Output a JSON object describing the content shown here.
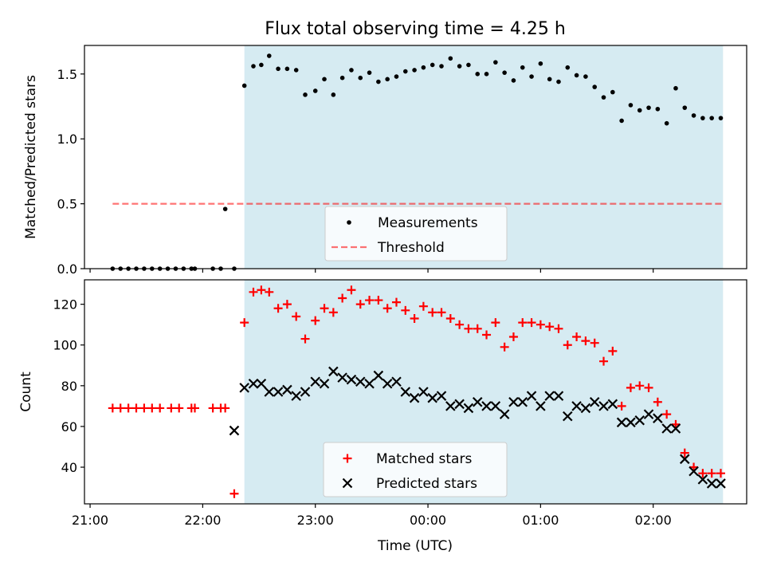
{
  "title": "Flux total observing time = 4.25 h",
  "colors": {
    "shade": "#add8e6",
    "measurement": "#000000",
    "threshold": "#ff0000",
    "matched": "#ff0000",
    "predicted": "#000000"
  },
  "chart_data": [
    {
      "type": "scatter",
      "ylabel": "Matched/Predicted stars",
      "ylim": [
        0,
        1.72
      ],
      "yticks": [
        0.0,
        0.5,
        1.0,
        1.5
      ],
      "ytick_labels": [
        "0.0",
        "0.5",
        "1.0",
        "1.5"
      ],
      "xlim": [
        -0.05,
        5.83
      ],
      "shaded_span": [
        1.37,
        5.62
      ],
      "legend": [
        "Measurements",
        "Threshold"
      ],
      "legend_position": "lower-center",
      "threshold": {
        "name": "Threshold",
        "value": 0.5,
        "x_range": [
          0.2,
          5.62
        ]
      },
      "series": [
        {
          "name": "Measurements",
          "marker": "dot",
          "x": [
            0.2,
            0.27,
            0.34,
            0.41,
            0.48,
            0.55,
            0.62,
            0.69,
            0.76,
            0.83,
            0.9,
            0.93,
            1.09,
            1.16,
            1.2,
            1.28,
            1.37,
            1.45,
            1.52,
            1.59,
            1.67,
            1.75,
            1.83,
            1.91,
            2.0,
            2.08,
            2.16,
            2.24,
            2.32,
            2.4,
            2.48,
            2.56,
            2.64,
            2.72,
            2.8,
            2.88,
            2.96,
            3.04,
            3.12,
            3.2,
            3.28,
            3.36,
            3.44,
            3.52,
            3.6,
            3.68,
            3.76,
            3.84,
            3.92,
            4.0,
            4.08,
            4.16,
            4.24,
            4.32,
            4.4,
            4.48,
            4.56,
            4.64,
            4.72,
            4.8,
            4.88,
            4.96,
            5.04,
            5.12,
            5.2,
            5.28,
            5.36,
            5.44,
            5.52,
            5.6
          ],
          "y": [
            0,
            0,
            0,
            0,
            0,
            0,
            0,
            0,
            0,
            0,
            0,
            0,
            0,
            0,
            0.46,
            0,
            1.41,
            1.56,
            1.57,
            1.64,
            1.54,
            1.54,
            1.53,
            1.34,
            1.37,
            1.46,
            1.34,
            1.47,
            1.53,
            1.47,
            1.51,
            1.44,
            1.46,
            1.48,
            1.52,
            1.53,
            1.55,
            1.57,
            1.56,
            1.62,
            1.56,
            1.57,
            1.5,
            1.5,
            1.59,
            1.51,
            1.45,
            1.55,
            1.48,
            1.58,
            1.46,
            1.44,
            1.55,
            1.49,
            1.48,
            1.4,
            1.32,
            1.36,
            1.14,
            1.26,
            1.22,
            1.24,
            1.23,
            1.12,
            1.39,
            1.24,
            1.18,
            1.16,
            1.16,
            1.16
          ]
        }
      ]
    },
    {
      "type": "scatter",
      "xlabel": "Time (UTC)",
      "ylabel": "Count",
      "ylim": [
        22,
        132
      ],
      "yticks": [
        40,
        60,
        80,
        100,
        120
      ],
      "ytick_labels": [
        "40",
        "60",
        "80",
        "100",
        "120"
      ],
      "xlim": [
        -0.05,
        5.83
      ],
      "xticks": [
        0,
        1,
        2,
        3,
        4,
        5
      ],
      "xtick_labels": [
        "21:00",
        "22:00",
        "23:00",
        "00:00",
        "01:00",
        "02:00"
      ],
      "shaded_span": [
        1.37,
        5.62
      ],
      "legend": [
        "Matched stars",
        "Predicted stars"
      ],
      "legend_position": "lower-center",
      "series": [
        {
          "name": "Matched stars",
          "marker": "plus",
          "x": [
            0.2,
            0.27,
            0.34,
            0.41,
            0.48,
            0.55,
            0.62,
            0.72,
            0.79,
            0.9,
            0.93,
            1.09,
            1.16,
            1.2,
            1.28,
            1.37,
            1.45,
            1.52,
            1.59,
            1.67,
            1.75,
            1.83,
            1.91,
            2.0,
            2.08,
            2.16,
            2.24,
            2.32,
            2.4,
            2.48,
            2.56,
            2.64,
            2.72,
            2.8,
            2.88,
            2.96,
            3.04,
            3.12,
            3.2,
            3.28,
            3.36,
            3.44,
            3.52,
            3.6,
            3.68,
            3.76,
            3.84,
            3.92,
            4.0,
            4.08,
            4.16,
            4.24,
            4.32,
            4.4,
            4.48,
            4.56,
            4.64,
            4.72,
            4.8,
            4.88,
            4.96,
            5.04,
            5.12,
            5.2,
            5.28,
            5.36,
            5.44,
            5.52,
            5.6
          ],
          "y": [
            69,
            69,
            69,
            69,
            69,
            69,
            69,
            69,
            69,
            69,
            69,
            69,
            69,
            69,
            27,
            111,
            126,
            127,
            126,
            118,
            120,
            114,
            103,
            112,
            118,
            116,
            123,
            127,
            120,
            122,
            122,
            118,
            121,
            117,
            113,
            119,
            116,
            116,
            113,
            110,
            108,
            108,
            105,
            111,
            99,
            104,
            111,
            111,
            110,
            109,
            108,
            100,
            104,
            102,
            101,
            92,
            97,
            70,
            79,
            80,
            79,
            72,
            66,
            61,
            47,
            40,
            37,
            37,
            37
          ]
        },
        {
          "name": "Predicted stars",
          "marker": "x",
          "x": [
            1.28,
            1.37,
            1.45,
            1.52,
            1.59,
            1.67,
            1.75,
            1.83,
            1.91,
            2.0,
            2.08,
            2.16,
            2.24,
            2.32,
            2.4,
            2.48,
            2.56,
            2.64,
            2.72,
            2.8,
            2.88,
            2.96,
            3.04,
            3.12,
            3.2,
            3.28,
            3.36,
            3.44,
            3.52,
            3.6,
            3.68,
            3.76,
            3.84,
            3.92,
            4.0,
            4.08,
            4.16,
            4.24,
            4.32,
            4.4,
            4.48,
            4.56,
            4.64,
            4.72,
            4.8,
            4.88,
            4.96,
            5.04,
            5.12,
            5.2,
            5.28,
            5.36,
            5.44,
            5.52,
            5.6
          ],
          "y": [
            58,
            79,
            81,
            81,
            77,
            77,
            78,
            75,
            77,
            82,
            81,
            87,
            84,
            83,
            82,
            81,
            85,
            81,
            82,
            77,
            74,
            77,
            74,
            75,
            70,
            71,
            69,
            72,
            70,
            70,
            66,
            72,
            72,
            75,
            70,
            75,
            75,
            65,
            70,
            69,
            72,
            70,
            71,
            62,
            62,
            63,
            66,
            64,
            59,
            59,
            44,
            38,
            34,
            32,
            32
          ]
        }
      ]
    }
  ]
}
